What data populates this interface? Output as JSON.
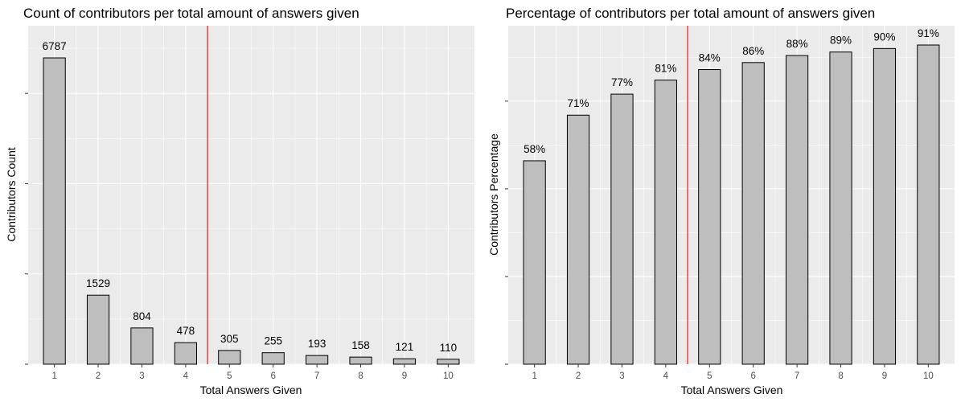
{
  "chart_data": [
    {
      "type": "bar",
      "title": "Count of contributors per total amount of answers given",
      "xlabel": "Total Answers Given",
      "ylabel": "Contributors Count",
      "categories": [
        "1",
        "2",
        "3",
        "4",
        "5",
        "6",
        "7",
        "8",
        "9",
        "10"
      ],
      "values": [
        6787,
        1529,
        804,
        478,
        305,
        255,
        193,
        158,
        121,
        110
      ],
      "value_labels": [
        "6787",
        "1529",
        "804",
        "478",
        "305",
        "255",
        "193",
        "158",
        "121",
        "110"
      ],
      "ylim": [
        0,
        7500
      ],
      "ytick_values": [
        0,
        2000,
        4000,
        6000
      ],
      "ytick_labels_shown": false,
      "grid": true,
      "reference_line_x": 4.5,
      "reference_line_color": "#e41a1c",
      "bar_fill": "#bebebe",
      "bar_stroke": "#000000",
      "panel_background": "#ebebeb"
    },
    {
      "type": "bar",
      "title": "Percentage of contributors per total amount of answers given",
      "xlabel": "Total Answers Given",
      "ylabel": "Contributors Percentage",
      "categories": [
        "1",
        "2",
        "3",
        "4",
        "5",
        "6",
        "7",
        "8",
        "9",
        "10"
      ],
      "values": [
        58,
        71,
        77,
        81,
        84,
        86,
        88,
        89,
        90,
        91
      ],
      "value_labels": [
        "58%",
        "71%",
        "77%",
        "81%",
        "84%",
        "86%",
        "88%",
        "89%",
        "90%",
        "91%"
      ],
      "ylim": [
        0,
        96.5
      ],
      "ytick_values": [
        0,
        25,
        50,
        75
      ],
      "ytick_labels_shown": false,
      "grid": true,
      "reference_line_x": 4.5,
      "reference_line_color": "#e41a1c",
      "bar_fill": "#bebebe",
      "bar_stroke": "#000000",
      "panel_background": "#ebebeb"
    }
  ]
}
